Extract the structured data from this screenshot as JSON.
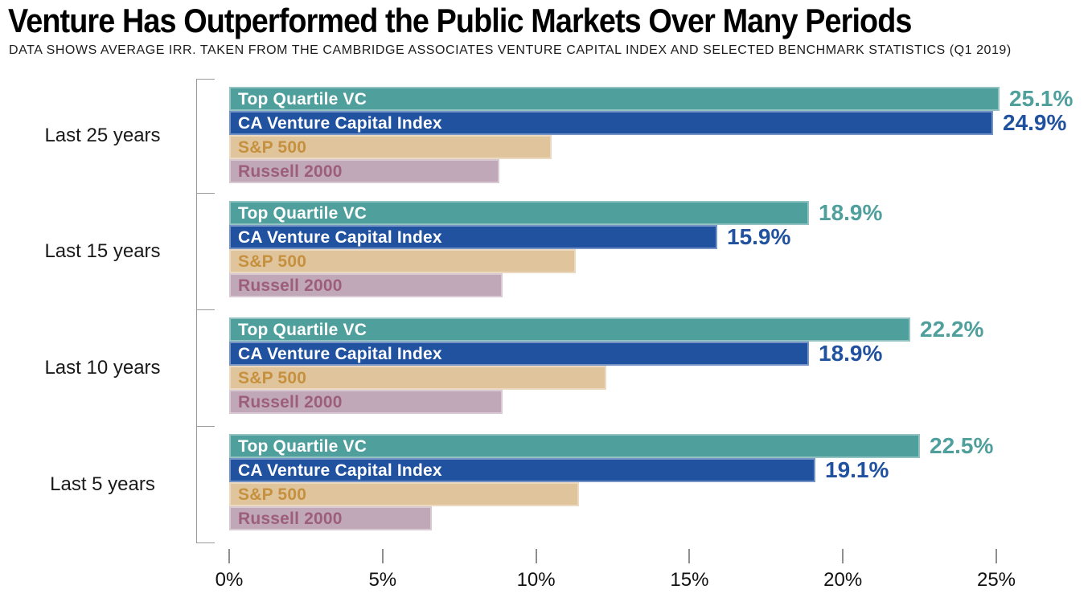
{
  "header": {
    "title": "Venture Has Outperformed the Public Markets Over Many Periods",
    "subtitle": "DATA SHOWS AVERAGE IRR. TAKEN FROM THE CAMBRIDGE ASSOCIATES VENTURE CAPITAL INDEX AND SELECTED BENCHMARK STATISTICS (Q1 2019)"
  },
  "chart_data": {
    "type": "bar",
    "orientation": "horizontal",
    "title": "Venture Has Outperformed the Public Markets Over Many Periods",
    "subtitle": "DATA SHOWS AVERAGE IRR. TAKEN FROM THE CAMBRIDGE ASSOCIATES VENTURE CAPITAL INDEX AND SELECTED BENCHMARK STATISTICS (Q1 2019)",
    "categories": [
      "Last 25 years",
      "Last 15 years",
      "Last 10 years",
      "Last 5 years"
    ],
    "series": [
      {
        "name": "Top Quartile VC",
        "color": "#4F9F9D",
        "label_color": "#ffffff",
        "values": [
          25.1,
          18.9,
          22.2,
          22.5
        ],
        "value_labels": [
          "25.1%",
          "18.9%",
          "22.2%",
          "22.5%"
        ]
      },
      {
        "name": "CA Venture Capital Index",
        "color": "#2152A0",
        "label_color": "#ffffff",
        "values": [
          24.9,
          15.9,
          18.9,
          19.1
        ],
        "value_labels": [
          "24.9%",
          "15.9%",
          "18.9%",
          "19.1%"
        ]
      },
      {
        "name": "S&P 500",
        "color": "#DFC49C",
        "label_color": "#C6913E",
        "values": [
          10.5,
          11.3,
          12.3,
          11.4
        ],
        "value_labels": []
      },
      {
        "name": "Russell 2000",
        "color": "#C0A8B8",
        "label_color": "#9C5E7B",
        "values": [
          8.8,
          8.9,
          8.9,
          6.6
        ],
        "value_labels": []
      }
    ],
    "xlabel": "",
    "ylabel": "",
    "x_axis": {
      "ticks": [
        "0%",
        "5%",
        "10%",
        "15%",
        "20%",
        "25%"
      ],
      "min": 0,
      "max": 25,
      "step": 5
    },
    "grid": false,
    "legend_position": "in-bar labels",
    "value_unit": "%"
  }
}
